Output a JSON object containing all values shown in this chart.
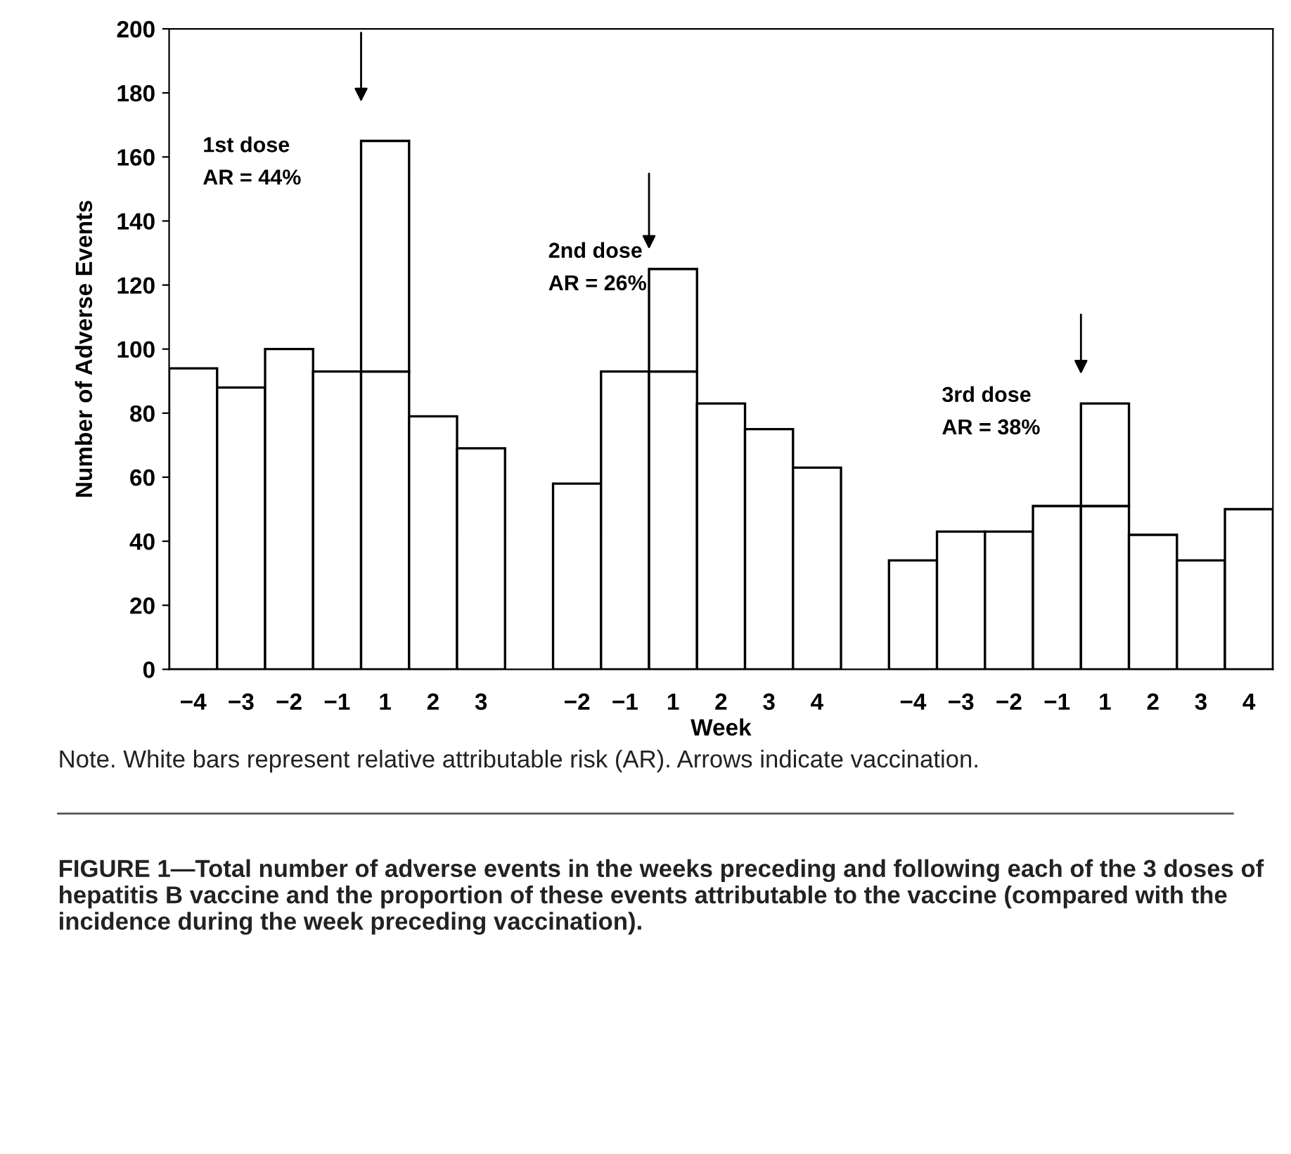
{
  "chart_data": {
    "type": "bar",
    "stacked": true,
    "xlabel": "Week",
    "ylabel": "Number of Adverse Events",
    "categories": [
      "−4",
      "−3",
      "−2",
      "−1",
      "1",
      "2",
      "3",
      null,
      "−2",
      "−1",
      "1",
      "2",
      "3",
      "4",
      null,
      "−4",
      "−3",
      "−2",
      "−1",
      "1",
      "2",
      "3",
      "4"
    ],
    "series": [
      {
        "color": "#ffffff",
        "values": [
          94,
          88,
          100,
          93,
          93,
          79,
          69,
          null,
          58,
          93,
          93,
          83,
          75,
          63,
          null,
          34,
          43,
          43,
          51,
          51,
          42,
          34,
          50
        ]
      },
      {
        "color": "#ffffff",
        "values": [
          null,
          null,
          null,
          null,
          72,
          null,
          null,
          null,
          null,
          null,
          32,
          null,
          null,
          null,
          null,
          null,
          null,
          null,
          null,
          32,
          null,
          null,
          null
        ]
      }
    ],
    "ylim": [
      0,
      200
    ],
    "yticks": [
      0,
      20,
      40,
      60,
      80,
      100,
      120,
      140,
      160,
      180,
      200
    ],
    "grid": false,
    "legend": false,
    "annotations": [
      "1st dose\nAR = 44%",
      "2nd dose\nAR = 26%",
      "3rd dose\nAR = 38%",
      "Note. White bars represent relative attributable risk (AR). Arrows indicate vaccination.",
      "FIGURE 1—Total number of adverse events in the weeks preceding and following each of the 3 doses of hepatitis B vaccine and the proportion of these events attributable to the vaccine (compared with the incidence during the week preceding vaccination)."
    ]
  }
}
